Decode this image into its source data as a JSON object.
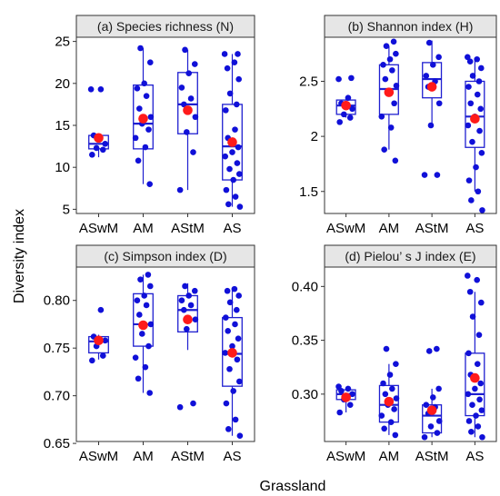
{
  "figure": {
    "xlabel": "Grassland",
    "ylabel": "Diversity index"
  },
  "colors": {
    "box": "#1f1fd0",
    "point": "#1010d8",
    "mean": "#ff1a1a",
    "strip_fill": "#e6e6e6"
  },
  "chart_data": [
    {
      "type": "boxplot",
      "title": "(a) Species richness (N)",
      "categories": [
        "ASwM",
        "AM",
        "AStM",
        "AS"
      ],
      "ylim": [
        4.5,
        25.5
      ],
      "yticks": [
        5,
        10,
        15,
        20,
        25
      ],
      "boxes": [
        {
          "q1": 12.2,
          "median": 12.8,
          "q3": 13.8,
          "whisker_low": 11.2,
          "whisker_high": 14.0,
          "mean": 13.5
        },
        {
          "q1": 12.2,
          "median": 15.2,
          "q3": 19.8,
          "whisker_low": 8.0,
          "whisker_high": 24.2,
          "mean": 15.8
        },
        {
          "q1": 14.0,
          "median": 17.5,
          "q3": 21.3,
          "whisker_low": 7.3,
          "whisker_high": 24.0,
          "mean": 16.8
        },
        {
          "q1": 8.5,
          "median": 12.5,
          "q3": 17.5,
          "whisker_low": 5.3,
          "whisker_high": 23.5,
          "mean": 13.0
        }
      ],
      "points": [
        [
          11.5,
          12.1,
          12.3,
          12.8,
          13.8,
          19.3,
          19.3
        ],
        [
          8.0,
          10.8,
          12.4,
          13.5,
          14.5,
          15.2,
          16.0,
          17.0,
          18.5,
          19.4,
          20.0,
          22.5,
          24.2
        ],
        [
          7.3,
          11.8,
          14.2,
          16.0,
          17.5,
          18.2,
          19.5,
          21.2,
          22.3,
          24.0
        ],
        [
          5.3,
          5.6,
          6.5,
          7.3,
          8.5,
          9.2,
          9.8,
          10.5,
          11.3,
          11.8,
          12.4,
          13.5,
          14.5,
          16.8,
          17.5,
          18.8,
          20.5,
          21.8,
          22.5,
          23.5,
          23.5
        ]
      ]
    },
    {
      "type": "boxplot",
      "title": "(b) Shannon index (H)",
      "categories": [
        "ASwM",
        "AM",
        "AStM",
        "AS"
      ],
      "ylim": [
        1.3,
        2.9
      ],
      "yticks": [
        1.5,
        2.0,
        2.5
      ],
      "boxes": [
        {
          "q1": 2.2,
          "median": 2.28,
          "q3": 2.33,
          "whisker_low": 2.17,
          "whisker_high": 2.35,
          "mean": 2.28
        },
        {
          "q1": 2.2,
          "median": 2.43,
          "q3": 2.65,
          "whisker_low": 1.88,
          "whisker_high": 2.82,
          "mean": 2.4
        },
        {
          "q1": 2.35,
          "median": 2.52,
          "q3": 2.67,
          "whisker_low": 2.1,
          "whisker_high": 2.87,
          "mean": 2.45
        },
        {
          "q1": 1.9,
          "median": 2.18,
          "q3": 2.5,
          "whisker_low": 1.5,
          "whisker_high": 2.7,
          "mean": 2.16
        }
      ],
      "points": [
        [
          2.13,
          2.17,
          2.2,
          2.25,
          2.3,
          2.35,
          2.52,
          2.53
        ],
        [
          1.78,
          1.88,
          2.08,
          2.18,
          2.3,
          2.4,
          2.46,
          2.52,
          2.6,
          2.65,
          2.7,
          2.75,
          2.82,
          2.86
        ],
        [
          1.65,
          1.65,
          2.1,
          2.3,
          2.45,
          2.5,
          2.55,
          2.65,
          2.72,
          2.85
        ],
        [
          1.33,
          1.42,
          1.5,
          1.6,
          1.72,
          1.85,
          1.95,
          2.05,
          2.1,
          2.18,
          2.25,
          2.3,
          2.38,
          2.45,
          2.5,
          2.55,
          2.62,
          2.68,
          2.7,
          2.72
        ]
      ]
    },
    {
      "type": "boxplot",
      "title": "(c) Simpson index (D)",
      "categories": [
        "ASwM",
        "AM",
        "AStM",
        "AS"
      ],
      "ylim": [
        0.652,
        0.835
      ],
      "yticks": [
        0.65,
        0.7,
        0.75,
        0.8
      ],
      "ytick_labels": [
        "0.65",
        "0.70",
        "0.75",
        "0.80"
      ],
      "boxes": [
        {
          "q1": 0.745,
          "median": 0.757,
          "q3": 0.762,
          "whisker_low": 0.738,
          "whisker_high": 0.764,
          "mean": 0.758
        },
        {
          "q1": 0.752,
          "median": 0.775,
          "q3": 0.807,
          "whisker_low": 0.703,
          "whisker_high": 0.827,
          "mean": 0.774
        },
        {
          "q1": 0.767,
          "median": 0.79,
          "q3": 0.805,
          "whisker_low": 0.748,
          "whisker_high": 0.818,
          "mean": 0.78
        },
        {
          "q1": 0.71,
          "median": 0.744,
          "q3": 0.782,
          "whisker_low": 0.658,
          "whisker_high": 0.812,
          "mean": 0.745
        }
      ],
      "points": [
        [
          0.737,
          0.742,
          0.752,
          0.758,
          0.762,
          0.79
        ],
        [
          0.703,
          0.718,
          0.73,
          0.74,
          0.752,
          0.765,
          0.775,
          0.785,
          0.795,
          0.8,
          0.805,
          0.815,
          0.822,
          0.827
        ],
        [
          0.688,
          0.692,
          0.77,
          0.78,
          0.79,
          0.795,
          0.8,
          0.805,
          0.81,
          0.815
        ],
        [
          0.658,
          0.665,
          0.675,
          0.692,
          0.705,
          0.715,
          0.728,
          0.738,
          0.745,
          0.752,
          0.76,
          0.768,
          0.775,
          0.782,
          0.79,
          0.798,
          0.805,
          0.81,
          0.812
        ]
      ]
    },
    {
      "type": "boxplot",
      "title": "(d) Pielou’ s J index (E)",
      "categories": [
        "ASwM",
        "AM",
        "AStM",
        "AS"
      ],
      "ylim": [
        0.256,
        0.418
      ],
      "yticks": [
        0.3,
        0.35,
        0.4
      ],
      "ytick_labels": [
        "0.30",
        "0.35",
        "0.40"
      ],
      "boxes": [
        {
          "q1": 0.295,
          "median": 0.3,
          "q3": 0.304,
          "whisker_low": 0.283,
          "whisker_high": 0.306,
          "mean": 0.297
        },
        {
          "q1": 0.274,
          "median": 0.29,
          "q3": 0.308,
          "whisker_low": 0.262,
          "whisker_high": 0.328,
          "mean": 0.293
        },
        {
          "q1": 0.264,
          "median": 0.28,
          "q3": 0.29,
          "whisker_low": 0.26,
          "whisker_high": 0.305,
          "mean": 0.285
        },
        {
          "q1": 0.28,
          "median": 0.3,
          "q3": 0.338,
          "whisker_low": 0.26,
          "whisker_high": 0.395,
          "mean": 0.315
        }
      ],
      "points": [
        [
          0.283,
          0.29,
          0.295,
          0.3,
          0.303,
          0.305,
          0.307
        ],
        [
          0.262,
          0.268,
          0.274,
          0.28,
          0.286,
          0.29,
          0.296,
          0.3,
          0.305,
          0.31,
          0.318,
          0.328,
          0.342
        ],
        [
          0.26,
          0.264,
          0.27,
          0.275,
          0.282,
          0.288,
          0.29,
          0.297,
          0.305,
          0.34,
          0.342
        ],
        [
          0.26,
          0.265,
          0.27,
          0.275,
          0.28,
          0.285,
          0.29,
          0.295,
          0.3,
          0.305,
          0.31,
          0.318,
          0.328,
          0.338,
          0.355,
          0.372,
          0.385,
          0.395,
          0.406,
          0.41
        ]
      ]
    }
  ]
}
